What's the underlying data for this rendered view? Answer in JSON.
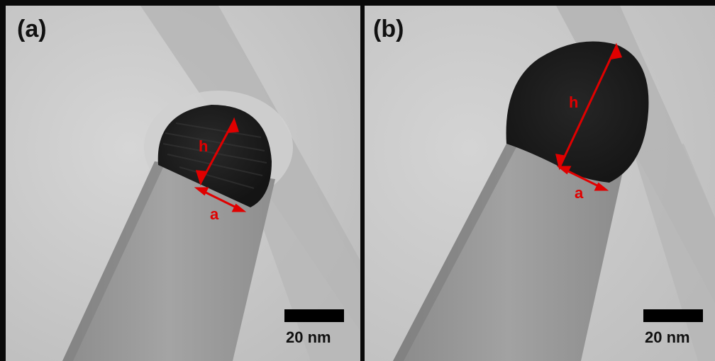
{
  "panels": [
    {
      "label": "(a)",
      "scale_bar": "20 nm",
      "annotations": {
        "height_label": "h",
        "base_label": "a"
      }
    },
    {
      "label": "(b)",
      "scale_bar": "20 nm",
      "annotations": {
        "height_label": "h",
        "base_label": "a"
      }
    }
  ],
  "colors": {
    "annotation": "#e00000",
    "background": "#c9c9c9",
    "nanowire": "#9a9a9a",
    "particle": "#1e1e1e"
  }
}
